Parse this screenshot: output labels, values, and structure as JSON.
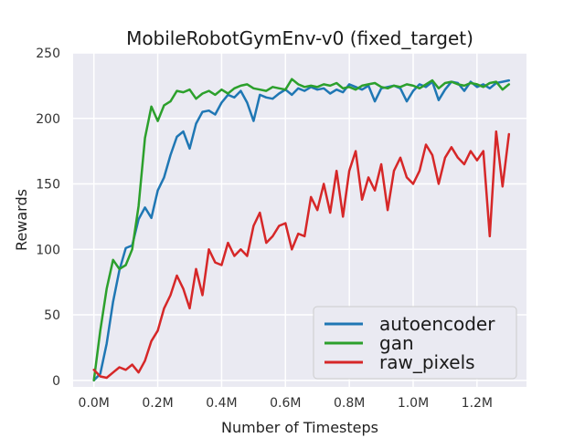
{
  "chart_data": {
    "type": "line",
    "title": "MobileRobotGymEnv-v0 (fixed_target)",
    "xlabel": "Number of Timesteps",
    "ylabel": "Rewards",
    "xlim": [
      -0.065,
      1.355
    ],
    "ylim": [
      -5,
      250
    ],
    "xticks": [
      0,
      0.2,
      0.4,
      0.6,
      0.8,
      1.0,
      1.2
    ],
    "xtick_labels": [
      "0.0M",
      "0.2M",
      "0.4M",
      "0.6M",
      "0.8M",
      "1.0M",
      "1.2M"
    ],
    "yticks": [
      0,
      50,
      100,
      150,
      200,
      250
    ],
    "ytick_labels": [
      "0",
      "50",
      "100",
      "150",
      "200",
      "250"
    ],
    "grid": true,
    "legend_position": "bottom-right",
    "series": [
      {
        "name": "autoencoder",
        "color": "#1f77b4",
        "x": [
          0.0,
          0.02,
          0.04,
          0.06,
          0.08,
          0.1,
          0.12,
          0.14,
          0.16,
          0.18,
          0.2,
          0.22,
          0.24,
          0.26,
          0.28,
          0.3,
          0.32,
          0.34,
          0.36,
          0.38,
          0.4,
          0.42,
          0.44,
          0.46,
          0.48,
          0.5,
          0.52,
          0.54,
          0.56,
          0.58,
          0.6,
          0.62,
          0.64,
          0.66,
          0.68,
          0.7,
          0.72,
          0.74,
          0.76,
          0.78,
          0.8,
          0.82,
          0.84,
          0.86,
          0.88,
          0.9,
          0.92,
          0.94,
          0.96,
          0.98,
          1.0,
          1.02,
          1.04,
          1.06,
          1.08,
          1.1,
          1.12,
          1.14,
          1.16,
          1.18,
          1.2,
          1.22,
          1.24,
          1.26,
          1.28,
          1.3
        ],
        "y": [
          0,
          5,
          28,
          60,
          84,
          101,
          103,
          123,
          132,
          124,
          145,
          155,
          172,
          186,
          190,
          177,
          196,
          205,
          206,
          203,
          212,
          218,
          216,
          221,
          212,
          198,
          218,
          216,
          215,
          219,
          222,
          218,
          223,
          221,
          224,
          222,
          223,
          219,
          222,
          220,
          226,
          224,
          222,
          225,
          213,
          223,
          224,
          225,
          223,
          213,
          221,
          226,
          224,
          228,
          214,
          222,
          228,
          227,
          221,
          228,
          224,
          226,
          223,
          227,
          228,
          229
        ]
      },
      {
        "name": "gan",
        "color": "#2ca02c",
        "x": [
          0.0,
          0.02,
          0.04,
          0.06,
          0.08,
          0.1,
          0.12,
          0.14,
          0.16,
          0.18,
          0.2,
          0.22,
          0.24,
          0.26,
          0.28,
          0.3,
          0.32,
          0.34,
          0.36,
          0.38,
          0.4,
          0.42,
          0.44,
          0.46,
          0.48,
          0.5,
          0.52,
          0.54,
          0.56,
          0.58,
          0.6,
          0.62,
          0.64,
          0.66,
          0.68,
          0.7,
          0.72,
          0.74,
          0.76,
          0.78,
          0.8,
          0.82,
          0.84,
          0.86,
          0.88,
          0.9,
          0.92,
          0.94,
          0.96,
          0.98,
          1.0,
          1.02,
          1.04,
          1.06,
          1.08,
          1.1,
          1.12,
          1.14,
          1.16,
          1.18,
          1.2,
          1.22,
          1.24,
          1.26,
          1.28,
          1.3
        ],
        "y": [
          0,
          38,
          70,
          92,
          85,
          88,
          100,
          133,
          185,
          209,
          198,
          210,
          213,
          221,
          220,
          222,
          215,
          219,
          221,
          218,
          222,
          219,
          223,
          225,
          226,
          223,
          222,
          221,
          224,
          223,
          222,
          230,
          226,
          224,
          225,
          224,
          226,
          225,
          227,
          223,
          224,
          222,
          225,
          226,
          227,
          224,
          223,
          225,
          224,
          226,
          225,
          223,
          226,
          229,
          223,
          227,
          228,
          226,
          225,
          227,
          226,
          224,
          227,
          228,
          222,
          226
        ]
      },
      {
        "name": "raw_pixels",
        "color": "#d62728",
        "x": [
          0.0,
          0.02,
          0.04,
          0.06,
          0.08,
          0.1,
          0.12,
          0.14,
          0.16,
          0.18,
          0.2,
          0.22,
          0.24,
          0.26,
          0.28,
          0.3,
          0.32,
          0.34,
          0.36,
          0.38,
          0.4,
          0.42,
          0.44,
          0.46,
          0.48,
          0.5,
          0.52,
          0.54,
          0.56,
          0.58,
          0.6,
          0.62,
          0.64,
          0.66,
          0.68,
          0.7,
          0.72,
          0.74,
          0.76,
          0.78,
          0.8,
          0.82,
          0.84,
          0.86,
          0.88,
          0.9,
          0.92,
          0.94,
          0.96,
          0.98,
          1.0,
          1.02,
          1.04,
          1.06,
          1.08,
          1.1,
          1.12,
          1.14,
          1.16,
          1.18,
          1.2,
          1.22,
          1.24,
          1.26,
          1.28,
          1.3
        ],
        "y": [
          8,
          3,
          2,
          6,
          10,
          8,
          12,
          6,
          15,
          30,
          38,
          55,
          65,
          80,
          70,
          55,
          85,
          65,
          100,
          90,
          88,
          105,
          95,
          100,
          95,
          118,
          128,
          105,
          110,
          118,
          120,
          100,
          112,
          110,
          140,
          130,
          150,
          128,
          160,
          125,
          160,
          175,
          138,
          155,
          145,
          165,
          130,
          160,
          170,
          155,
          150,
          160,
          180,
          172,
          150,
          170,
          178,
          170,
          165,
          175,
          168,
          175,
          110,
          190,
          148,
          188
        ]
      }
    ]
  }
}
